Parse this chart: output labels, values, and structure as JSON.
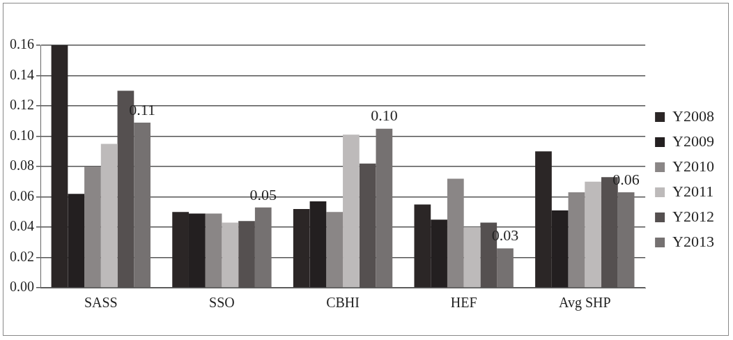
{
  "chart_data": {
    "type": "bar",
    "categories": [
      "SASS",
      "SSO",
      "CBHI",
      "HEF",
      "Avg SHP"
    ],
    "series": [
      {
        "name": "Y2008",
        "color": "#2b2626",
        "values": [
          0.16,
          0.05,
          0.052,
          0.055,
          0.09
        ]
      },
      {
        "name": "Y2009",
        "color": "#231f20",
        "values": [
          0.062,
          0.049,
          0.057,
          0.045,
          0.051
        ]
      },
      {
        "name": "Y2010",
        "color": "#8a8686",
        "values": [
          0.08,
          0.049,
          0.05,
          0.072,
          0.063
        ]
      },
      {
        "name": "Y2011",
        "color": "#bdbaba",
        "values": [
          0.095,
          0.043,
          0.101,
          0.04,
          0.07
        ]
      },
      {
        "name": "Y2012",
        "color": "#555050",
        "values": [
          0.13,
          0.044,
          0.082,
          0.043,
          0.073
        ]
      },
      {
        "name": "Y2013",
        "color": "#757171",
        "values": [
          0.109,
          0.053,
          0.105,
          0.026,
          0.063
        ],
        "value_labels": [
          "0.11",
          "0.05",
          "0.10",
          "0.03",
          "0.06"
        ]
      }
    ],
    "ylim": [
      0,
      0.16
    ],
    "yticks": [
      {
        "value": 0,
        "label": "0.00"
      },
      {
        "value": 0.02,
        "label": "0.02"
      },
      {
        "value": 0.04,
        "label": "0.04"
      },
      {
        "value": 0.06,
        "label": "0.06"
      },
      {
        "value": 0.08,
        "label": "0.08"
      },
      {
        "value": 0.1,
        "label": "0.10"
      },
      {
        "value": 0.12,
        "label": "0.12"
      },
      {
        "value": 0.14,
        "label": "0.14"
      },
      {
        "value": 0.16,
        "label": "0.16"
      }
    ],
    "grid": "y",
    "legend": "right"
  }
}
